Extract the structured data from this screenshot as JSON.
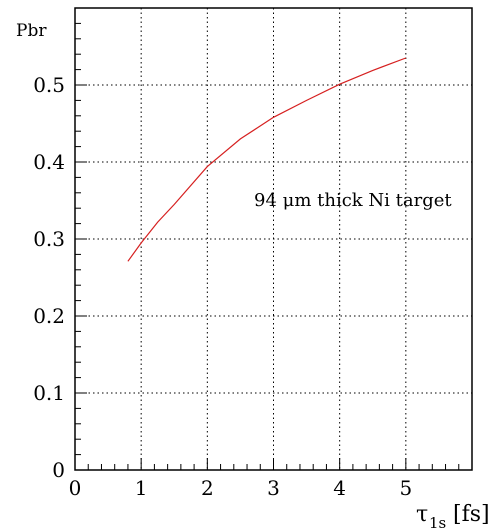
{
  "chart_data": {
    "type": "line",
    "title": "",
    "ylabel": "Pbr",
    "xlabel": {
      "symbol": "τ",
      "subscript": "1s",
      "unit": "[fs]"
    },
    "xlim": [
      0,
      6
    ],
    "ylim": [
      0,
      0.6
    ],
    "grid": true,
    "x_ticks": [
      0,
      1,
      2,
      3,
      4,
      5
    ],
    "y_ticks": [
      0,
      0.1,
      0.2,
      0.3,
      0.4,
      0.5
    ],
    "x_tick_labels": [
      "0",
      "1",
      "2",
      "3",
      "4",
      "5"
    ],
    "y_tick_labels": [
      "0",
      "0.1",
      "0.2",
      "0.3",
      "0.4",
      "0.5"
    ],
    "annotations": [
      {
        "text": "94 μm thick Ni target",
        "x": 2.7,
        "y": 0.35
      }
    ],
    "series": [
      {
        "color": "#d62020",
        "x": [
          0.8,
          1.0,
          1.25,
          1.5,
          2.0,
          2.5,
          3.0,
          3.5,
          4.0,
          4.5,
          5.0
        ],
        "y": [
          0.271,
          0.295,
          0.322,
          0.345,
          0.394,
          0.43,
          0.458,
          0.48,
          0.501,
          0.519,
          0.535
        ]
      }
    ]
  }
}
